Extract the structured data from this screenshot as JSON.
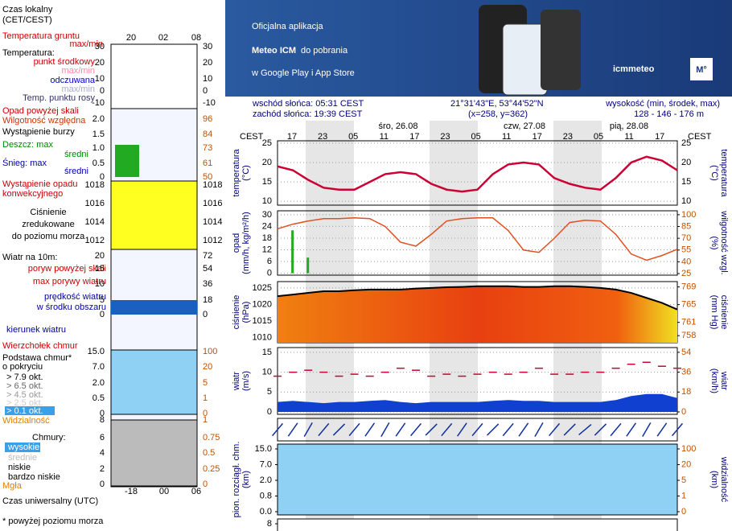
{
  "banner": {
    "line1": "Oficjalna aplikacja",
    "line2_bold": "Meteo ICM",
    "line2_rest": "do pobrania",
    "line3": "w Google Play i App Store",
    "logo": "icmmeteo",
    "badge": "M°"
  },
  "header": {
    "sunrise": "wschód słońca: 05:31 CEST",
    "sunset": "zachód słońca: 19:39 CEST",
    "coords": "21°31'43\"E, 53°44'52\"N",
    "grid": "(x=258,  y=362)",
    "elevation_label": "wysokość (min, środek, max)",
    "elevation": "128 - 146 - 176 m"
  },
  "dates": [
    "śro, 26.08",
    "czw, 27.08",
    "pią, 28.08"
  ],
  "tz": "CEST",
  "hours": [
    "17",
    "23",
    "05",
    "11",
    "17",
    "23",
    "05",
    "11",
    "17",
    "23",
    "05",
    "11",
    "17"
  ],
  "legend": {
    "local_time": [
      "Czas lokalny",
      "(CET/CEST)"
    ],
    "local_hours": [
      "20",
      "02",
      "08"
    ],
    "temp_texts": [
      "Temperatura gruntu",
      "max/min",
      "Temperatura:",
      "punkt środkowy",
      "max/min",
      "odczuwana",
      "max/min",
      "Temp. punktu rosy"
    ],
    "temp_ticks": [
      30,
      20,
      10,
      0,
      -10
    ],
    "precip_texts": [
      "Opad powyżej skali",
      "Wilgotność względna",
      "Wystąpienie burzy",
      "Deszcz: max",
      "średni",
      "Śnieg: max",
      "średni",
      "Wystąpienie opadu",
      "konwekcyjnego"
    ],
    "precip_ticks": [
      {
        "value": 2,
        "label": "2.0"
      },
      1.5,
      {
        "value": 1,
        "label": "1.0"
      },
      0.5,
      0
    ],
    "humidity_ticks": [
      96,
      84,
      73,
      61,
      50
    ],
    "pressure_texts": [
      "Ciśnienie",
      "zredukowane",
      "do poziomu morza"
    ],
    "pressure_ticks": [
      1018,
      1016,
      1014,
      1012
    ],
    "wind_texts": [
      "Wiatr na 10m:",
      "poryw powyżej skali",
      "max porywy wiatru",
      "prędkość wiatru",
      "w środku obszaru"
    ],
    "wind_ticks": [
      20,
      15,
      10,
      5,
      0
    ],
    "wind_kmh_ticks": [
      72,
      54,
      36,
      18,
      0
    ],
    "direction_text": "kierunek wiatru",
    "cloud_texts": [
      "Wierzchołek chmur",
      "Podstawa chmur*",
      "o pokryciu",
      "> 7.9 okt.",
      "> 6.5 okt.",
      "> 4.5 okt.",
      "> 2.5 okt.",
      "> 0.1 okt."
    ],
    "cloud_ticks": [
      {
        "value": 15,
        "label": "15.0"
      },
      {
        "value": 7,
        "label": "7.0"
      },
      {
        "value": 2,
        "label": "2.0"
      },
      0.5,
      0
    ],
    "vis_ticks": [
      100,
      20,
      5,
      1,
      0
    ],
    "visibility_text": "Widzialność",
    "cover_texts": [
      "Chmury:",
      "wysokie",
      "średnie",
      "niskie",
      "bardzo niskie",
      "Mgła"
    ],
    "cover_ticks": [
      8,
      6,
      4,
      2,
      0
    ],
    "cover_frac_ticks": [
      1,
      0.75,
      0.5,
      0.25,
      0
    ],
    "utc_text": "Czas uniwersalny (UTC)",
    "utc_hours": [
      "-18",
      "00",
      "06"
    ],
    "footnote": "* powyżej poziomu morza"
  },
  "chart_data": [
    {
      "type": "line",
      "name": "temperature",
      "axis_label": "temperatura",
      "unit": "(°C)",
      "color": "#cc0033",
      "ylim": [
        9,
        25.6
      ],
      "yticks": [
        25,
        20,
        15,
        10
      ],
      "values": [
        19,
        18,
        15.5,
        13.5,
        13,
        13,
        15,
        17,
        17.5,
        17,
        14.5,
        13,
        12.5,
        13,
        17,
        19.5,
        20,
        19.5,
        16,
        14.5,
        13.5,
        13,
        16,
        20,
        21.5,
        20.5,
        18
      ]
    },
    {
      "type": "bar_line",
      "name": "precipitation",
      "axis_label": "opad",
      "unit": "(mm/h, kg/m²/h)",
      "y2_axis_label": "wilgotność wzgl.",
      "y2_unit": "(%)",
      "ylim": [
        -1,
        32
      ],
      "yticks": [
        30,
        24,
        18,
        12,
        6,
        0
      ],
      "y2lim": [
        23,
        105
      ],
      "y2ticks": [
        100,
        85,
        70,
        55,
        40,
        25
      ],
      "series": [
        {
          "name": "opad",
          "color": "#22aa22",
          "values": [
            0,
            22,
            8,
            0,
            0,
            0,
            0,
            0,
            0,
            0,
            0,
            0,
            0,
            0,
            0,
            0,
            0,
            0,
            0,
            0,
            0,
            0,
            0,
            0,
            0,
            0,
            0
          ]
        },
        {
          "name": "wilgotność",
          "color": "#e05020",
          "axis": "y2",
          "values": [
            82,
            88,
            92,
            95,
            95,
            96,
            95,
            85,
            65,
            60,
            75,
            92,
            95,
            96,
            96,
            80,
            55,
            52,
            70,
            90,
            93,
            92,
            75,
            50,
            42,
            48,
            56
          ]
        }
      ]
    },
    {
      "type": "area",
      "name": "pressure",
      "axis_label": "ciśnienie",
      "unit": "(hPa)",
      "y2_axis_label": "ciśnienie",
      "y2_unit": "(mm Hg)",
      "color": "#000000",
      "ylim": [
        1008.5,
        1026.9
      ],
      "yticks": [
        1025,
        1020,
        1015,
        1010
      ],
      "y2lim": [
        756.4,
        770.2
      ],
      "y2ticks": [
        769,
        765,
        761,
        758
      ],
      "values": [
        1022.5,
        1023,
        1023.5,
        1024,
        1024,
        1024.3,
        1024.5,
        1024.5,
        1024.5,
        1024.8,
        1025,
        1025.2,
        1025.3,
        1025.5,
        1025.5,
        1025.5,
        1025.3,
        1025.3,
        1025.5,
        1025.5,
        1025.3,
        1025,
        1024.5,
        1023.5,
        1022,
        1020.5,
        1018.5
      ]
    },
    {
      "type": "wind",
      "name": "wind",
      "axis_label": "wiatr",
      "unit": "(m/s)",
      "y2_axis_label": "wiatr",
      "y2_unit": "(km/h)",
      "ylim": [
        -0.6,
        16.2
      ],
      "yticks": [
        15,
        10,
        5,
        0
      ],
      "y2lim": [
        -2.2,
        58.3
      ],
      "y2ticks": [
        54,
        36,
        18,
        0
      ],
      "series": [
        {
          "name": "prędkość",
          "color": "#1040d0",
          "values": [
            2.5,
            2.8,
            2.5,
            2.2,
            2.5,
            2.5,
            2.8,
            3,
            2.5,
            2.2,
            2.5,
            2.5,
            2.5,
            2.5,
            2.8,
            3,
            2.8,
            2.8,
            2.5,
            2.5,
            2.5,
            2.5,
            3,
            4,
            4.5,
            4.5,
            3.5
          ]
        },
        {
          "name": "porywy",
          "color": "#cc0033",
          "values": [
            9,
            10,
            10.5,
            10,
            9,
            9.5,
            9,
            10,
            11,
            10.5,
            9,
            9.5,
            9,
            9.5,
            10,
            9.5,
            10,
            11,
            9.5,
            9.5,
            10,
            10,
            11,
            12,
            12.5,
            11.5,
            11
          ]
        }
      ]
    },
    {
      "type": "arrows",
      "name": "direction",
      "color": "#1030a0",
      "values": [
        40,
        35,
        30,
        40,
        45,
        40,
        35,
        30,
        35,
        40,
        45,
        40,
        35,
        40,
        45,
        40,
        35,
        30,
        40,
        45,
        50,
        45,
        40,
        35,
        30,
        35,
        40
      ]
    },
    {
      "type": "clouds",
      "name": "clouds",
      "axis_label": "pion. rozciągł. chm.",
      "unit": "(km)",
      "y2_axis_label": "widzialność",
      "y2_unit": "(km)",
      "yticks": [
        {
          "value": 15,
          "label": "15.0"
        },
        {
          "value": 7,
          "label": "7.0"
        },
        {
          "value": 2,
          "label": "2.0"
        },
        0.8,
        {
          "value": 0,
          "label": "0.0"
        }
      ],
      "y2ticks": [
        100,
        20,
        5,
        1,
        0
      ]
    },
    {
      "type": "partial",
      "name": "cover",
      "yticks": [
        8
      ]
    }
  ]
}
